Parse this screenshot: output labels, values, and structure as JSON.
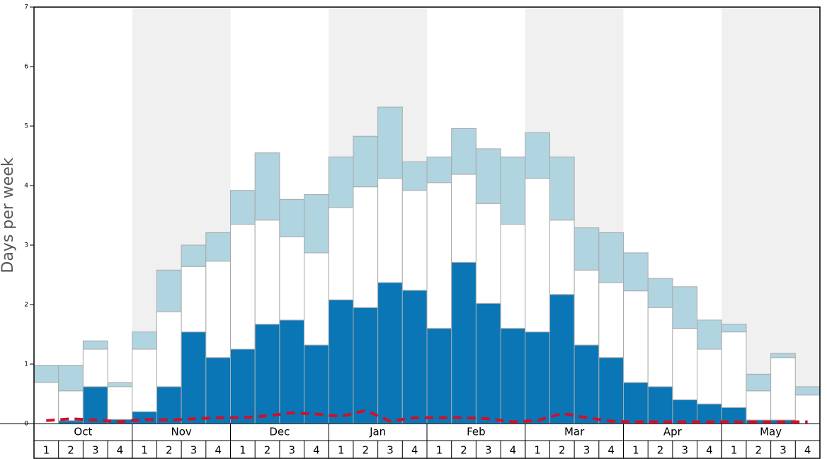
{
  "chart_data": {
    "type": "stacked-bar",
    "ylabel": "Days per week",
    "groups": [
      "Oct",
      "Nov",
      "Dec",
      "Jan",
      "Feb",
      "Mar",
      "Apr",
      "May"
    ],
    "categories": [
      "1",
      "2",
      "3",
      "4",
      "1",
      "2",
      "3",
      "4",
      "1",
      "2",
      "3",
      "4",
      "1",
      "2",
      "3",
      "4",
      "1",
      "2",
      "3",
      "4",
      "1",
      "2",
      "3",
      "4",
      "1",
      "2",
      "3",
      "4",
      "1",
      "2",
      "3",
      "4"
    ],
    "series": [
      {
        "color": "#0a76b6",
        "values": [
          0,
          0.05,
          0.62,
          0.07,
          0.2,
          0.62,
          1.54,
          1.11,
          1.25,
          1.67,
          1.74,
          1.32,
          2.08,
          1.95,
          2.37,
          2.24,
          1.6,
          2.71,
          2.02,
          1.6,
          1.54,
          2.17,
          1.32,
          1.11,
          0.69,
          0.62,
          0.4,
          0.33,
          0.27,
          0.06,
          0.06,
          0
        ]
      },
      {
        "color": "#ffffff",
        "values": [
          0.69,
          0.5,
          0.63,
          0.55,
          1.05,
          1.26,
          1.1,
          1.62,
          2.1,
          1.75,
          1.4,
          1.55,
          1.55,
          2.03,
          1.75,
          1.68,
          2.45,
          1.48,
          1.68,
          1.75,
          2.58,
          1.25,
          1.26,
          1.26,
          1.54,
          1.33,
          1.2,
          0.92,
          1.27,
          0.49,
          1.05,
          0.48
        ]
      },
      {
        "color": "#b0d4e0",
        "values": [
          0.29,
          0.43,
          0.14,
          0.07,
          0.29,
          0.7,
          0.36,
          0.48,
          0.57,
          1.13,
          0.63,
          0.98,
          0.85,
          0.85,
          1.2,
          0.48,
          0.43,
          0.77,
          0.92,
          1.13,
          0.77,
          1.06,
          0.71,
          0.84,
          0.64,
          0.49,
          0.7,
          0.49,
          0.13,
          0.28,
          0.07,
          0.14
        ]
      },
      {
        "type": "line",
        "color": "#d0102a",
        "values": [
          0.05,
          0.08,
          0.06,
          0.03,
          0.07,
          0.06,
          0.08,
          0.1,
          0.1,
          0.13,
          0.18,
          0.16,
          0.12,
          0.22,
          0.04,
          0.1,
          0.1,
          0.1,
          0.08,
          0.03,
          0.05,
          0.17,
          0.1,
          0.04,
          0.03,
          0.03,
          0.03,
          0.03,
          0.03,
          0.03,
          0.03,
          0.03
        ]
      }
    ],
    "ylim": [
      0,
      7
    ],
    "yticks": [
      0,
      1,
      2,
      3,
      4,
      5,
      6,
      7
    ],
    "shaded_groups": [
      false,
      true,
      false,
      true,
      false,
      true,
      false,
      true
    ],
    "shade_color": "#f0f0f0"
  }
}
